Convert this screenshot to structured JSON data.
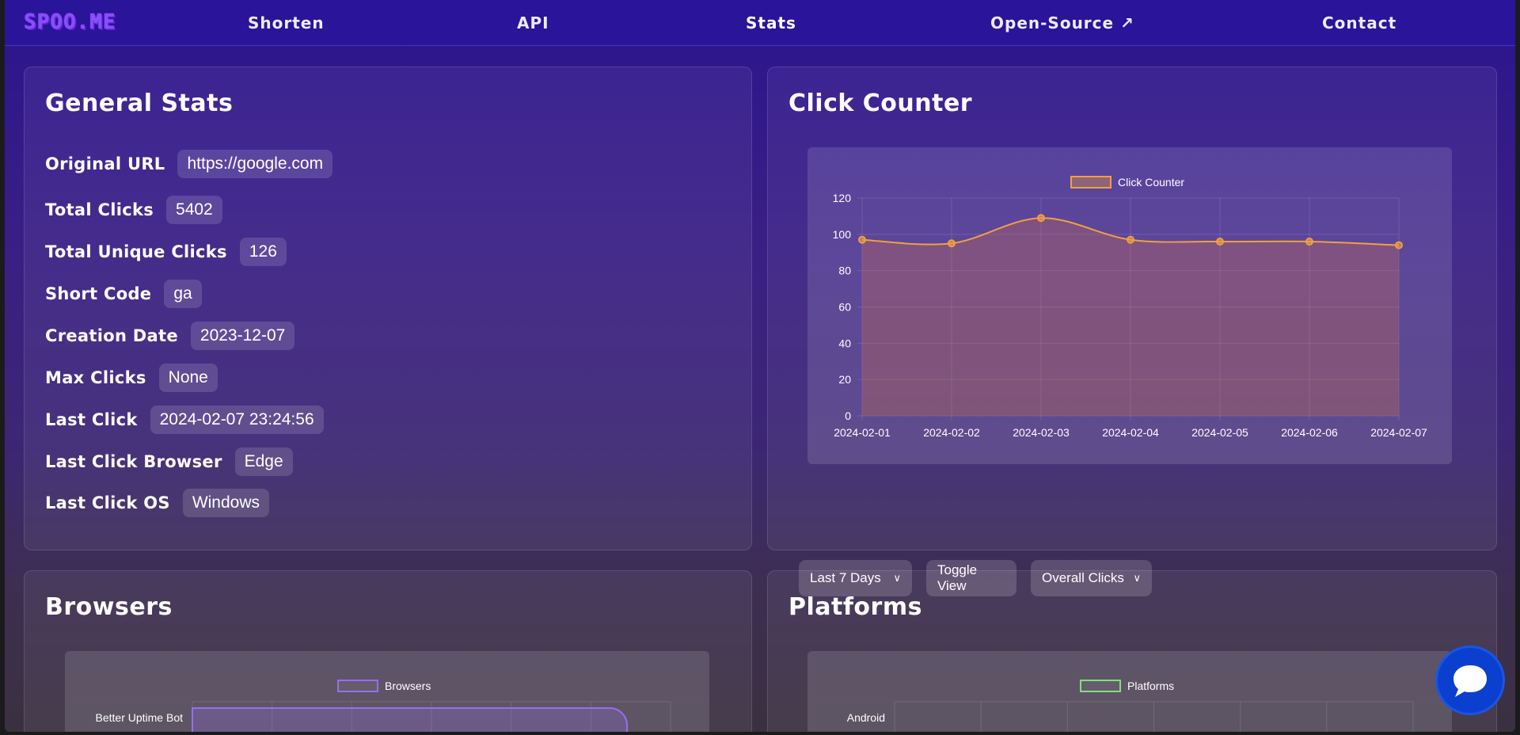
{
  "nav": {
    "logo": "SPOO.ME",
    "links": [
      "Shorten",
      "API",
      "Stats",
      "Open-Source ↗",
      "Contact"
    ],
    "active": "Stats"
  },
  "general": {
    "title": "General Stats",
    "rows": [
      {
        "label": "Original URL",
        "value": "https://google.com"
      },
      {
        "label": "Total Clicks",
        "value": "5402"
      },
      {
        "label": "Total Unique Clicks",
        "value": "126"
      },
      {
        "label": "Short Code",
        "value": "ga"
      },
      {
        "label": "Creation Date",
        "value": "2023-12-07"
      },
      {
        "label": "Max Clicks",
        "value": "None"
      },
      {
        "label": "Last Click",
        "value": "2024-02-07 23:24:56"
      },
      {
        "label": "Last Click Browser",
        "value": "Edge"
      },
      {
        "label": "Last Click OS",
        "value": "Windows"
      }
    ]
  },
  "click_counter": {
    "title": "Click Counter",
    "controls": {
      "range": "Last 7 Days",
      "toggle": "Toggle View",
      "mode": "Overall Clicks"
    }
  },
  "browsers": {
    "title": "Browsers"
  },
  "platforms": {
    "title": "Platforms"
  },
  "colors": {
    "accent": "#f0a040",
    "browsers": "#9a6cf0",
    "platforms": "#7fe07f"
  },
  "chart_data": [
    {
      "type": "line",
      "legend": "Click Counter",
      "categories": [
        "2024-02-01",
        "2024-02-02",
        "2024-02-03",
        "2024-02-04",
        "2024-02-05",
        "2024-02-06",
        "2024-02-07"
      ],
      "values": [
        97,
        95,
        109,
        97,
        96,
        96,
        94
      ],
      "ylim": [
        0,
        120
      ],
      "yticks": [
        0,
        20,
        40,
        60,
        80,
        100,
        120
      ]
    },
    {
      "type": "bar",
      "legend": "Browsers",
      "categories": [
        "Better Uptime Bot"
      ],
      "values": [
        1
      ]
    },
    {
      "type": "bar",
      "legend": "Platforms",
      "categories": [
        "Android"
      ],
      "values": [
        0
      ]
    }
  ]
}
